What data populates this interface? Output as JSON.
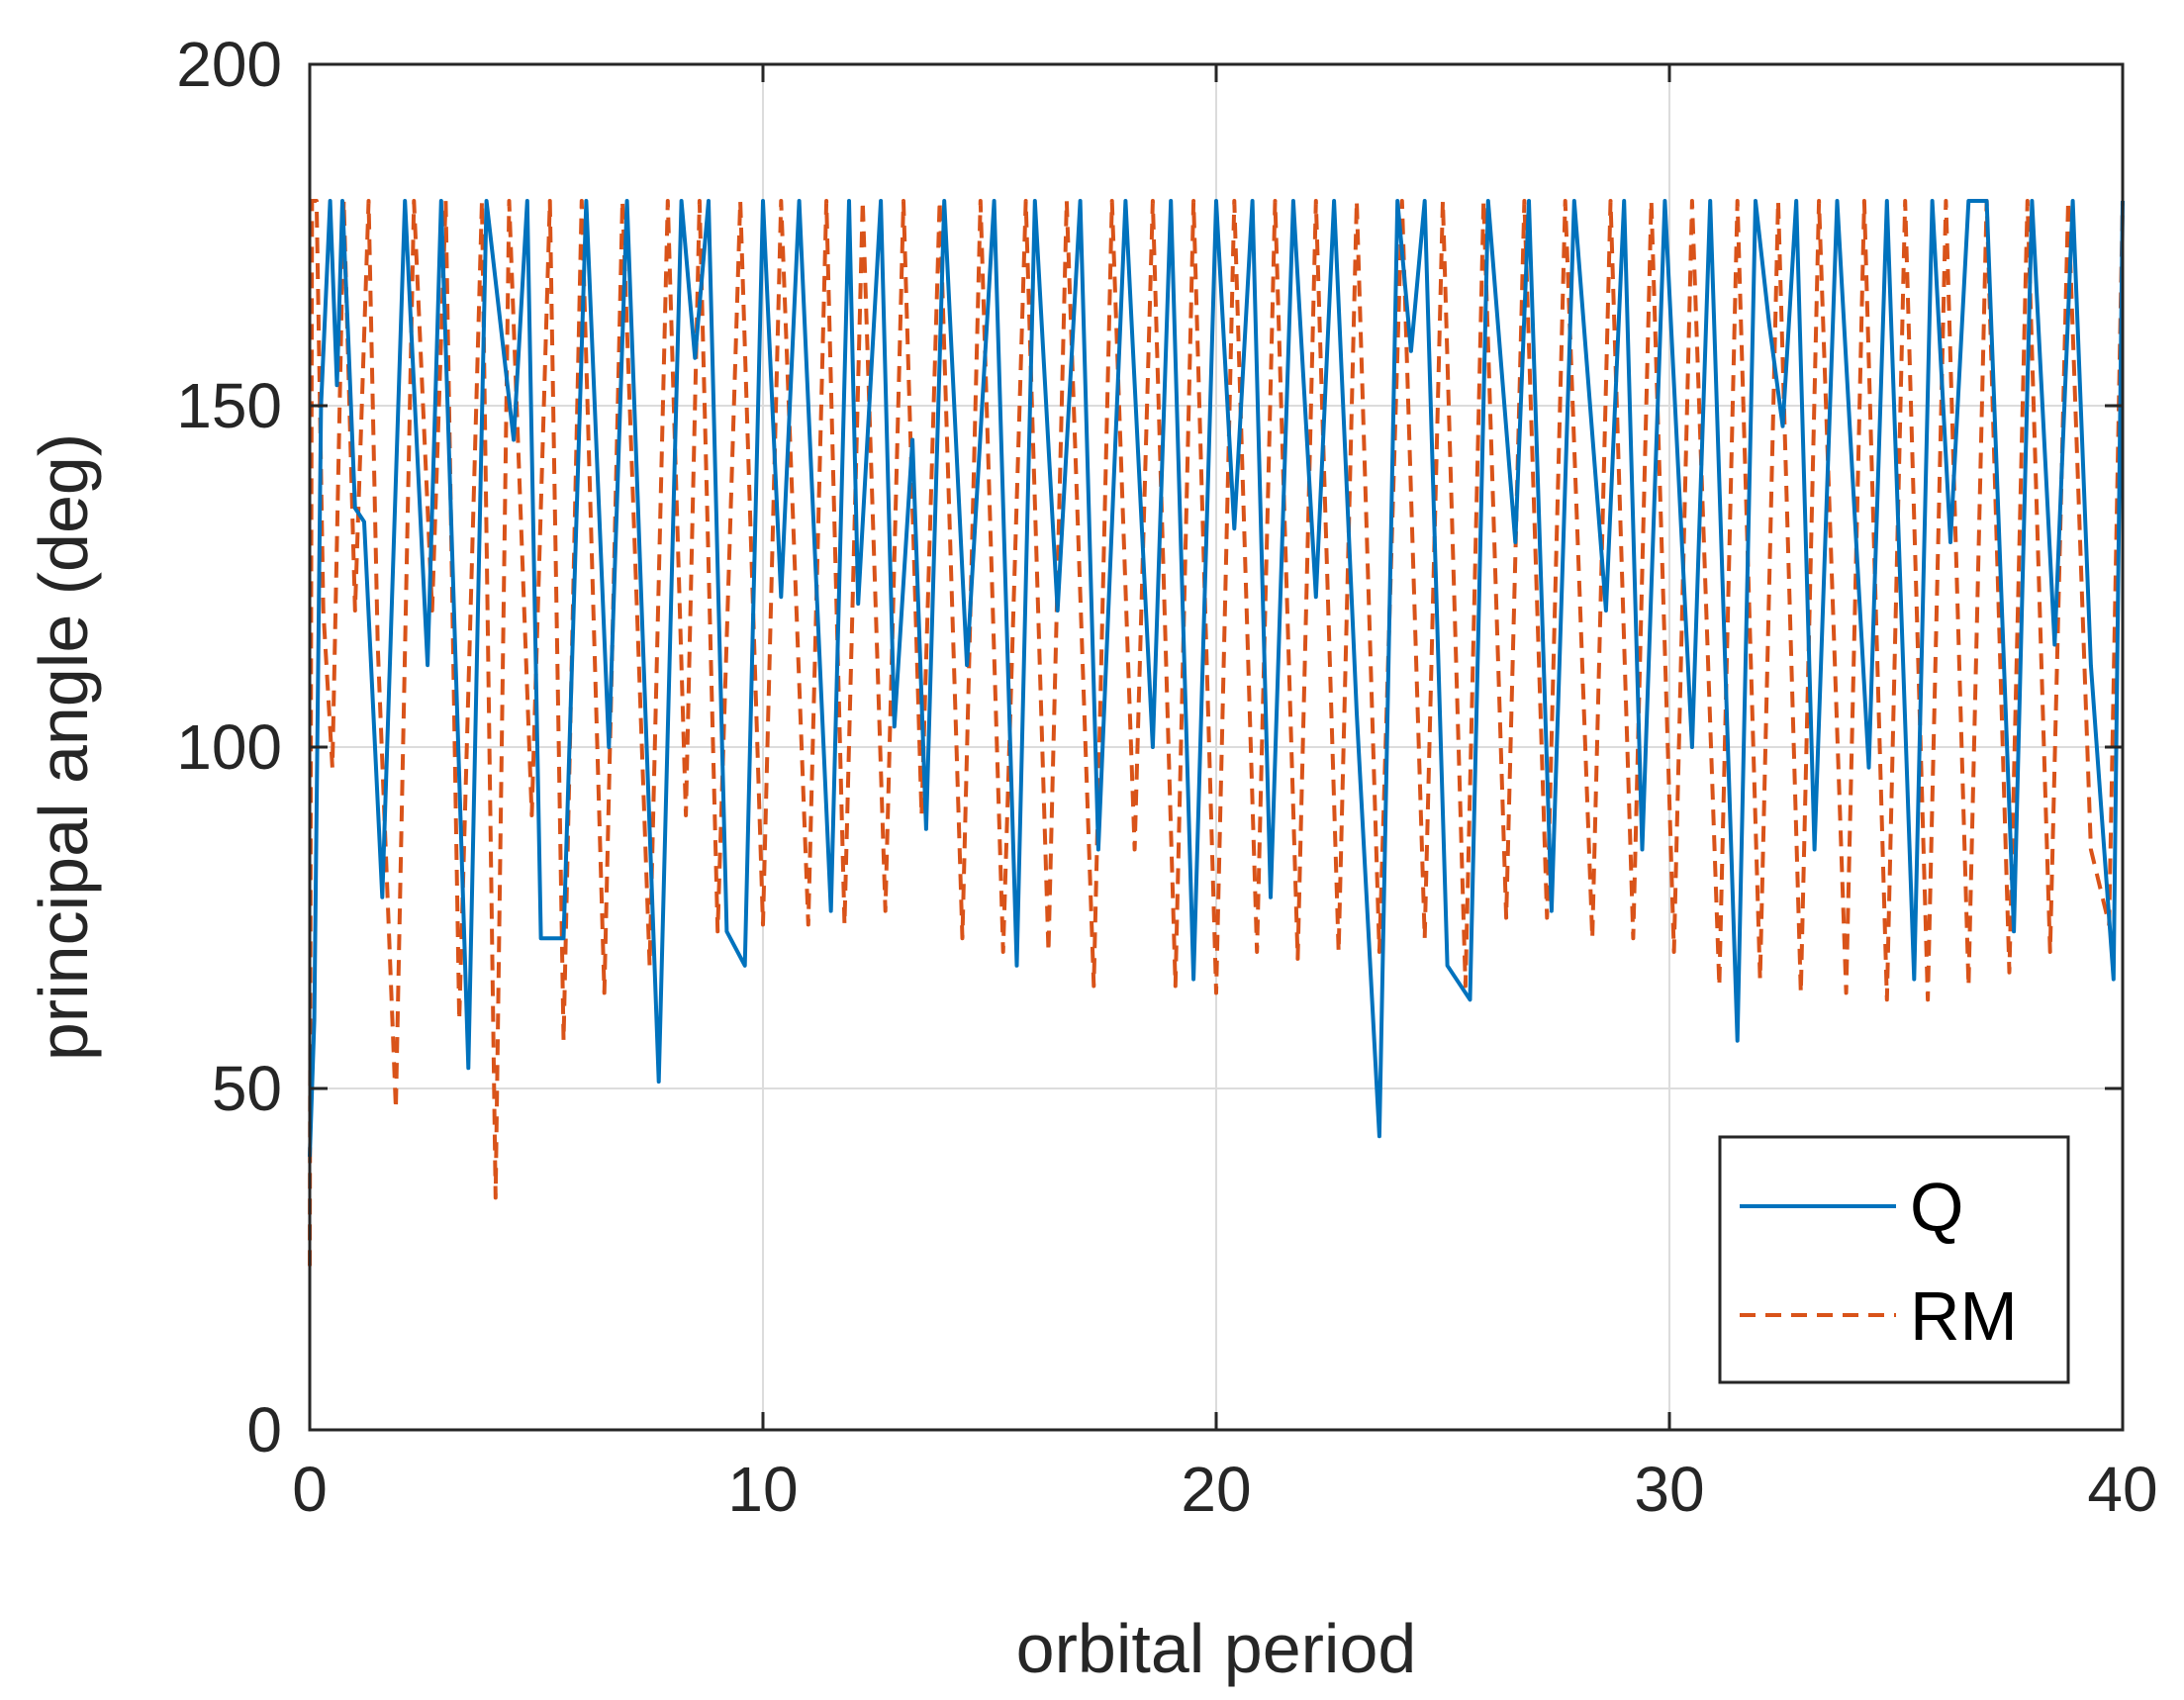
{
  "chart_data": {
    "type": "line",
    "title": "",
    "xlabel": "orbital period",
    "ylabel": "principal angle (deg)",
    "xlim": [
      0,
      40
    ],
    "ylim": [
      0,
      200
    ],
    "xticks": [
      0,
      10,
      20,
      30,
      40
    ],
    "yticks": [
      0,
      50,
      100,
      150,
      200
    ],
    "xtick_labels": [
      "0",
      "10",
      "20",
      "30",
      "40"
    ],
    "ytick_labels": [
      "0",
      "50",
      "100",
      "150",
      "200"
    ],
    "grid": true,
    "legend_position": "bottom-right",
    "series": [
      {
        "name": "Q",
        "color": "#0072BD",
        "style": "solid",
        "points": [
          [
            0,
            40
          ],
          [
            0.1,
            60
          ],
          [
            0.25,
            150
          ],
          [
            0.45,
            180
          ],
          [
            0.6,
            153
          ],
          [
            0.72,
            180
          ],
          [
            0.85,
            160
          ],
          [
            1.0,
            135
          ],
          [
            1.2,
            133
          ],
          [
            1.6,
            78
          ],
          [
            2.1,
            180
          ],
          [
            2.6,
            112
          ],
          [
            2.9,
            180
          ],
          [
            3.5,
            53
          ],
          [
            3.9,
            180
          ],
          [
            4.5,
            145
          ],
          [
            4.8,
            180
          ],
          [
            5.1,
            72
          ],
          [
            5.6,
            72
          ],
          [
            6.1,
            180
          ],
          [
            6.6,
            100
          ],
          [
            7.0,
            180
          ],
          [
            7.7,
            51
          ],
          [
            8.2,
            180
          ],
          [
            8.5,
            157
          ],
          [
            8.8,
            180
          ],
          [
            9.2,
            73
          ],
          [
            9.6,
            68
          ],
          [
            10.0,
            180
          ],
          [
            10.4,
            122
          ],
          [
            10.8,
            180
          ],
          [
            11.5,
            76
          ],
          [
            11.9,
            180
          ],
          [
            12.1,
            121
          ],
          [
            12.6,
            180
          ],
          [
            12.9,
            103
          ],
          [
            13.3,
            145
          ],
          [
            13.6,
            88
          ],
          [
            14.0,
            180
          ],
          [
            14.5,
            112
          ],
          [
            15.1,
            180
          ],
          [
            15.6,
            68
          ],
          [
            16.0,
            180
          ],
          [
            16.5,
            120
          ],
          [
            17.0,
            180
          ],
          [
            17.4,
            85
          ],
          [
            18.0,
            180
          ],
          [
            18.6,
            100
          ],
          [
            19.0,
            180
          ],
          [
            19.5,
            66
          ],
          [
            20.0,
            180
          ],
          [
            20.4,
            132
          ],
          [
            20.8,
            180
          ],
          [
            21.2,
            78
          ],
          [
            21.7,
            180
          ],
          [
            22.2,
            122
          ],
          [
            22.6,
            180
          ],
          [
            23.1,
            105
          ],
          [
            23.6,
            43
          ],
          [
            24.0,
            180
          ],
          [
            24.3,
            158
          ],
          [
            24.6,
            180
          ],
          [
            25.1,
            68
          ],
          [
            25.6,
            63
          ],
          [
            26.0,
            180
          ],
          [
            26.6,
            130
          ],
          [
            26.9,
            180
          ],
          [
            27.4,
            76
          ],
          [
            27.9,
            180
          ],
          [
            28.6,
            120
          ],
          [
            29.0,
            180
          ],
          [
            29.4,
            85
          ],
          [
            29.9,
            180
          ],
          [
            30.5,
            100
          ],
          [
            30.9,
            180
          ],
          [
            31.5,
            57
          ],
          [
            31.9,
            180
          ],
          [
            32.2,
            162
          ],
          [
            32.5,
            147
          ],
          [
            32.8,
            180
          ],
          [
            33.2,
            85
          ],
          [
            33.7,
            180
          ],
          [
            34.4,
            97
          ],
          [
            34.8,
            180
          ],
          [
            35.4,
            66
          ],
          [
            35.8,
            180
          ],
          [
            36.2,
            130
          ],
          [
            36.6,
            180
          ],
          [
            37.0,
            180
          ],
          [
            37.6,
            73
          ],
          [
            38.0,
            180
          ],
          [
            38.5,
            115
          ],
          [
            38.9,
            180
          ],
          [
            39.3,
            112
          ],
          [
            39.8,
            66
          ],
          [
            40.0,
            180
          ]
        ]
      },
      {
        "name": "RM",
        "color": "#D95319",
        "style": "dashed",
        "points": [
          [
            0,
            24
          ],
          [
            0.05,
            180
          ],
          [
            0.15,
            180
          ],
          [
            0.3,
            120
          ],
          [
            0.5,
            97
          ],
          [
            0.75,
            180
          ],
          [
            1.0,
            120
          ],
          [
            1.3,
            180
          ],
          [
            1.5,
            115
          ],
          [
            1.9,
            47
          ],
          [
            2.3,
            180
          ],
          [
            2.7,
            120
          ],
          [
            3.0,
            180
          ],
          [
            3.3,
            60
          ],
          [
            3.8,
            180
          ],
          [
            4.1,
            34
          ],
          [
            4.4,
            180
          ],
          [
            4.9,
            90
          ],
          [
            5.3,
            180
          ],
          [
            5.6,
            57
          ],
          [
            6.0,
            180
          ],
          [
            6.5,
            64
          ],
          [
            6.9,
            180
          ],
          [
            7.5,
            68
          ],
          [
            7.9,
            180
          ],
          [
            8.3,
            90
          ],
          [
            8.6,
            180
          ],
          [
            9.0,
            73
          ],
          [
            9.5,
            180
          ],
          [
            10.0,
            74
          ],
          [
            10.4,
            180
          ],
          [
            11.0,
            74
          ],
          [
            11.4,
            180
          ],
          [
            11.8,
            74
          ],
          [
            12.2,
            180
          ],
          [
            12.7,
            76
          ],
          [
            13.1,
            180
          ],
          [
            13.5,
            90
          ],
          [
            13.9,
            180
          ],
          [
            14.4,
            72
          ],
          [
            14.8,
            180
          ],
          [
            15.3,
            70
          ],
          [
            15.8,
            180
          ],
          [
            16.3,
            70
          ],
          [
            16.7,
            180
          ],
          [
            17.3,
            65
          ],
          [
            17.7,
            180
          ],
          [
            18.2,
            85
          ],
          [
            18.6,
            180
          ],
          [
            19.1,
            65
          ],
          [
            19.5,
            180
          ],
          [
            20.0,
            64
          ],
          [
            20.4,
            180
          ],
          [
            20.9,
            70
          ],
          [
            21.3,
            180
          ],
          [
            21.8,
            69
          ],
          [
            22.2,
            180
          ],
          [
            22.7,
            70
          ],
          [
            23.1,
            180
          ],
          [
            23.6,
            70
          ],
          [
            24.1,
            180
          ],
          [
            24.6,
            72
          ],
          [
            25.0,
            180
          ],
          [
            25.5,
            65
          ],
          [
            25.9,
            180
          ],
          [
            26.4,
            75
          ],
          [
            26.8,
            180
          ],
          [
            27.3,
            75
          ],
          [
            27.7,
            180
          ],
          [
            28.3,
            72
          ],
          [
            28.7,
            180
          ],
          [
            29.2,
            72
          ],
          [
            29.6,
            180
          ],
          [
            30.1,
            70
          ],
          [
            30.5,
            180
          ],
          [
            31.1,
            65
          ],
          [
            31.5,
            180
          ],
          [
            32.0,
            66
          ],
          [
            32.4,
            180
          ],
          [
            32.9,
            64
          ],
          [
            33.3,
            180
          ],
          [
            33.9,
            64
          ],
          [
            34.3,
            180
          ],
          [
            34.8,
            63
          ],
          [
            35.2,
            180
          ],
          [
            35.7,
            63
          ],
          [
            36.1,
            180
          ],
          [
            36.6,
            65
          ],
          [
            37.0,
            180
          ],
          [
            37.5,
            67
          ],
          [
            37.9,
            180
          ],
          [
            38.4,
            70
          ],
          [
            38.8,
            180
          ],
          [
            39.3,
            85
          ],
          [
            39.7,
            74
          ],
          [
            40.0,
            180
          ]
        ]
      }
    ]
  }
}
